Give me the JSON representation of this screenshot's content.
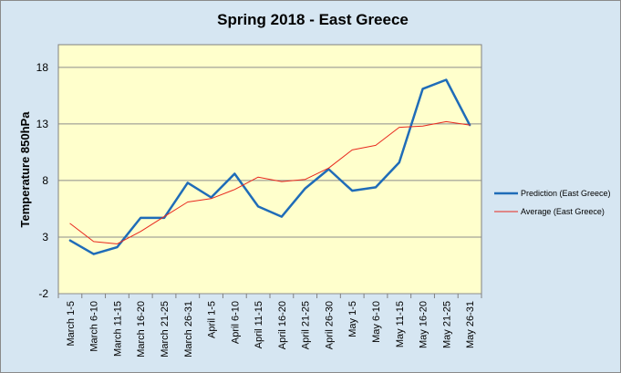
{
  "chart_data": {
    "type": "line",
    "title": "Spring 2018 - East Greece",
    "xlabel": "",
    "ylabel": "Temperature 850hPa",
    "ylim": [
      -2,
      20
    ],
    "yticks": [
      "-2",
      "3",
      "8",
      "13",
      "18"
    ],
    "grid": true,
    "legend_position": "right",
    "plot_background": "#ffffcc",
    "frame_background": "#d6e6f2",
    "categories": [
      "March 1-5",
      "March 6-10",
      "March 11-15",
      "March 16-20",
      "March 21-25",
      "March 26-31",
      "April 1-5",
      "April 6-10",
      "April 11-15",
      "April 16-20",
      "April 21-25",
      "April 26-30",
      "May 1-5",
      "May 6-10",
      "May 11-15",
      "May 16-20",
      "May 21-25",
      "May 26-31"
    ],
    "series": [
      {
        "name": "Prediction (East Greece)",
        "color": "#1f6cb8",
        "values": [
          2.7,
          1.5,
          2.1,
          4.7,
          4.7,
          7.8,
          6.5,
          8.6,
          5.7,
          4.8,
          7.3,
          9.0,
          7.1,
          7.4,
          9.6,
          16.1,
          16.9,
          12.9
        ]
      },
      {
        "name": "Average (East Greece)",
        "color": "#e8281e",
        "values": [
          4.2,
          2.6,
          2.4,
          3.5,
          4.8,
          6.1,
          6.4,
          7.2,
          8.3,
          7.9,
          8.1,
          9.1,
          10.7,
          11.1,
          12.7,
          12.8,
          13.2,
          12.9
        ]
      }
    ]
  }
}
